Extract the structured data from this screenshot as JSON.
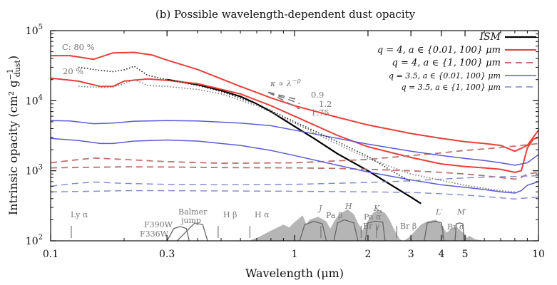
{
  "chart_data": {
    "type": "line",
    "title": "(b) Possible wavelength-dependent dust opacity",
    "xlabel": "Wavelength (μm)",
    "ylabel": "Intrinsic opacity (cm² g",
    "ylabel_sup": "−1",
    "ylabel_sub": "dust",
    "ylabel_close": ")",
    "x_scale": "log",
    "y_scale": "log",
    "xlim": [
      0.1,
      10
    ],
    "ylim": [
      100,
      100000
    ],
    "x_ticks": [
      {
        "value": 0.1,
        "label": "0.1"
      },
      {
        "value": 0.3,
        "label": "0.3"
      },
      {
        "value": 1,
        "label": "1"
      },
      {
        "value": 2,
        "label": "2"
      },
      {
        "value": 3,
        "label": "3"
      },
      {
        "value": 4,
        "label": "4"
      },
      {
        "value": 5,
        "label": "5"
      },
      {
        "value": 10,
        "label": "10"
      }
    ],
    "y_ticks": [
      {
        "value": 100,
        "label": "10",
        "exp": "2"
      },
      {
        "value": 1000,
        "label": "10",
        "exp": "3"
      },
      {
        "value": 10000,
        "label": "10",
        "exp": "4"
      },
      {
        "value": 100000,
        "label": "10",
        "exp": "5"
      }
    ],
    "legend_position": "top-right",
    "series": [
      {
        "name": "ISM",
        "color": "#000000",
        "style": "solid",
        "width": 2.2,
        "x": [
          0.3,
          0.4,
          0.5,
          0.6,
          0.7,
          0.8,
          1.0,
          1.2,
          1.5,
          2.0,
          2.5,
          3.0,
          3.3
        ],
        "y": [
          20000,
          17000,
          14000,
          11500,
          9000,
          7000,
          4300,
          2900,
          1750,
          1000,
          620,
          420,
          340
        ]
      },
      {
        "name": "q = 4, a ∈ {0.01, 100} μm",
        "legend_italic_end": false,
        "color": "#e8403b",
        "style": "solid",
        "width": 2.0,
        "x": [
          0.1,
          0.12,
          0.15,
          0.18,
          0.22,
          0.26,
          0.3,
          0.4,
          0.6,
          0.8,
          1.0,
          1.5,
          2.0,
          3.0,
          4.0,
          5.0,
          6.0,
          7.0,
          8.0,
          9.0,
          10.0
        ],
        "y": [
          44000,
          44000,
          39000,
          48000,
          49000,
          45000,
          38000,
          28000,
          16000,
          11000,
          8500,
          5800,
          4500,
          3400,
          2900,
          2600,
          2450,
          2300,
          1900,
          2300,
          3800
        ]
      },
      {
        "name": "q = 4, a ∈ {0.01, 100} μm (20%)",
        "color": "#e8403b",
        "style": "solid",
        "width": 2.0,
        "x": [
          0.1,
          0.13,
          0.16,
          0.18,
          0.2,
          0.25,
          0.3,
          0.4,
          0.6,
          0.8,
          1.0,
          1.5,
          2.0,
          3.0,
          4.0,
          5.0,
          6.0,
          7.0,
          8.0,
          8.5,
          9.0,
          9.5,
          10.0
        ],
        "y": [
          21000,
          19000,
          16000,
          16000,
          19000,
          20500,
          19500,
          17500,
          12500,
          8500,
          6000,
          3200,
          2200,
          1550,
          1250,
          1150,
          1100,
          1050,
          950,
          1000,
          2100,
          2800,
          3000
        ]
      },
      {
        "name": "q = 4, a ∈ {1, 100} μm",
        "color": "#c0706d",
        "style": "dashed",
        "width": 1.8,
        "x": [
          0.1,
          0.12,
          0.15,
          0.2,
          0.3,
          0.5,
          1.0,
          2.0,
          3.0,
          4.0,
          5.0,
          6.0,
          7.0,
          8.0,
          9.0,
          10.0
        ],
        "y": [
          1300,
          1400,
          1520,
          1450,
          1350,
          1280,
          1300,
          1450,
          1650,
          1800,
          1950,
          2050,
          2150,
          2250,
          2350,
          2450
        ]
      },
      {
        "name": "q = 4, a ∈ {1, 100} μm (20%)",
        "color": "#c0706d",
        "style": "dashed",
        "width": 1.8,
        "x": [
          0.1,
          0.15,
          0.2,
          0.3,
          0.5,
          1.0,
          1.5,
          2.0,
          2.5,
          3.0,
          4.0,
          5.0,
          6.0,
          7.0,
          8.0,
          8.5,
          9.0,
          10.0
        ],
        "y": [
          1100,
          1120,
          1140,
          1130,
          1110,
          1100,
          1080,
          1050,
          1020,
          1000,
          950,
          900,
          850,
          800,
          760,
          800,
          900,
          950
        ]
      },
      {
        "name": "q = 3.5, a ∈ {0.01, 100} μm",
        "color": "#5a5ad6",
        "style": "solid",
        "width": 1.5,
        "x": [
          0.1,
          0.12,
          0.15,
          0.18,
          0.22,
          0.3,
          0.4,
          0.6,
          0.8,
          1.0,
          1.5,
          2.0,
          3.0,
          4.0,
          5.0,
          6.0,
          7.0,
          8.0,
          9.0,
          10.0
        ],
        "y": [
          5200,
          5150,
          4700,
          4800,
          5100,
          5200,
          5150,
          4800,
          4400,
          3800,
          2900,
          2400,
          1900,
          1650,
          1500,
          1400,
          1300,
          1200,
          1300,
          1700
        ]
      },
      {
        "name": "q = 3.5, a ∈ {0.01, 100} μm (20%)",
        "color": "#5a5ad6",
        "style": "solid",
        "width": 1.5,
        "x": [
          0.1,
          0.13,
          0.16,
          0.18,
          0.22,
          0.3,
          0.4,
          0.6,
          0.8,
          1.0,
          1.5,
          2.0,
          3.0,
          4.0,
          5.0,
          6.0,
          7.0,
          8.0,
          8.5,
          9.0,
          10.0
        ],
        "y": [
          2900,
          2700,
          2450,
          2450,
          2650,
          2750,
          2650,
          2300,
          1950,
          1650,
          1200,
          960,
          740,
          630,
          580,
          540,
          500,
          480,
          520,
          620,
          700
        ]
      },
      {
        "name": "q = 3.5, a ∈ {1, 100} μm",
        "color": "#7f86c8",
        "style": "dashed",
        "width": 1.4,
        "x": [
          0.1,
          0.12,
          0.15,
          0.2,
          0.3,
          0.5,
          1.0,
          2.0,
          3.0,
          4.0,
          5.0,
          6.0,
          7.0,
          8.0,
          9.0,
          10.0
        ],
        "y": [
          600,
          650,
          690,
          660,
          640,
          630,
          640,
          680,
          720,
          760,
          790,
          810,
          820,
          830,
          840,
          850
        ]
      },
      {
        "name": "q = 3.5, a ∈ {1, 100} μm (20%)",
        "color": "#7f86c8",
        "style": "dashed",
        "width": 1.4,
        "x": [
          0.1,
          0.15,
          0.2,
          0.3,
          0.5,
          1.0,
          2.0,
          3.0,
          4.0,
          5.0,
          6.0,
          7.0,
          8.0,
          9.0,
          10.0
        ],
        "y": [
          500,
          510,
          520,
          520,
          515,
          510,
          500,
          490,
          470,
          450,
          430,
          410,
          395,
          410,
          420
        ]
      },
      {
        "name": "power law κ ∝ λ^-0.9",
        "color": "#777777",
        "style": "dashed",
        "width": 1.6,
        "x": [
          0.78,
          1.05
        ],
        "y": [
          13200,
          10200
        ]
      },
      {
        "name": "power law κ ∝ λ^-1.2",
        "color": "#777777",
        "style": "dashed",
        "width": 1.6,
        "x": [
          0.78,
          1.05
        ],
        "y": [
          13200,
          9100
        ]
      },
      {
        "name": "power law κ ∝ λ^-1.75",
        "color": "#777777",
        "style": "dashed",
        "width": 1.6,
        "x": [
          0.78,
          1.05
        ],
        "y": [
          13200,
          7600
        ]
      },
      {
        "name": "C: 80% dotted",
        "color": "#222222",
        "style": "dotted",
        "width": 1.6,
        "x": [
          0.13,
          0.16,
          0.18,
          0.2,
          0.22,
          0.25,
          0.3,
          0.4,
          0.5,
          0.7,
          1.0,
          1.5,
          2.0,
          2.5,
          3.0
        ],
        "y": [
          30000,
          27000,
          26000,
          27500,
          31000,
          23000,
          20000,
          16500,
          13500,
          9000,
          5000,
          2600,
          1600,
          1000,
          700
        ]
      },
      {
        "name": "20% dotted",
        "color": "#777777",
        "style": "dotted",
        "width": 1.6,
        "x": [
          0.13,
          0.16,
          0.18,
          0.2,
          0.22,
          0.25,
          0.3,
          0.4,
          0.5,
          0.7,
          1.0,
          1.5,
          2.0,
          3.0,
          5.0,
          7.0,
          8.0
        ],
        "y": [
          16000,
          15500,
          15700,
          17500,
          20000,
          16500,
          16000,
          14500,
          12500,
          8500,
          4800,
          2400,
          1500,
          900,
          620,
          520,
          500
        ]
      }
    ],
    "legend_entries": [
      {
        "label": "ISM",
        "color": "#000000",
        "style": "solid",
        "size": 14
      },
      {
        "label": "q = 4, a ∈ {0.01, 100} μm",
        "color": "#e8403b",
        "style": "solid",
        "size": 13
      },
      {
        "label": "q = 4, a ∈ {1, 100} μm",
        "color": "#c0706d",
        "style": "dashed",
        "size": 13
      },
      {
        "label": "q = 3.5, a ∈ {0.01, 100} μm",
        "color": "#5a5ad6",
        "style": "solid",
        "size": 11
      },
      {
        "label": "q = 3.5, a ∈ {1, 100} μm",
        "color": "#7f86c8",
        "style": "dashed",
        "size": 11
      }
    ],
    "filters": [
      {
        "name": "F390W",
        "x": [
          0.33,
          0.37,
          0.39,
          0.42,
          0.44
        ],
        "y": [
          100,
          150,
          180,
          170,
          100
        ]
      },
      {
        "name": "F336W",
        "x": [
          0.3,
          0.32,
          0.34,
          0.36,
          0.37
        ],
        "y": [
          100,
          150,
          160,
          150,
          100
        ]
      },
      {
        "name": "J",
        "x": [
          1.05,
          1.1,
          1.2,
          1.3,
          1.35
        ],
        "y": [
          100,
          170,
          190,
          175,
          100
        ]
      },
      {
        "name": "H",
        "x": [
          1.45,
          1.5,
          1.6,
          1.75,
          1.82
        ],
        "y": [
          100,
          180,
          200,
          180,
          100
        ]
      },
      {
        "name": "Ks",
        "x": [
          1.95,
          2.0,
          2.15,
          2.3,
          2.35
        ],
        "y": [
          100,
          180,
          190,
          185,
          100
        ]
      },
      {
        "name": "L'",
        "x": [
          3.4,
          3.5,
          3.8,
          4.0,
          4.1
        ],
        "y": [
          100,
          180,
          190,
          180,
          100
        ]
      },
      {
        "name": "M'",
        "x": [
          4.55,
          4.6,
          4.75,
          4.9,
          4.95
        ],
        "y": [
          100,
          175,
          180,
          175,
          100
        ]
      }
    ],
    "atmospheric_transmission": {
      "color": "#b5b5b5",
      "x": [
        0.65,
        0.72,
        0.8,
        0.9,
        0.95,
        1.0,
        1.08,
        1.12,
        1.15,
        1.25,
        1.35,
        1.4,
        1.48,
        1.55,
        1.65,
        1.75,
        1.82,
        1.9,
        2.0,
        2.1,
        2.2,
        2.35,
        2.45,
        2.55,
        2.7,
        2.8,
        2.9,
        3.0,
        3.3,
        3.5,
        3.8,
        4.0,
        4.2,
        4.4,
        4.6,
        4.8,
        5.0,
        5.1,
        5.2,
        5.5,
        6.0
      ],
      "y": [
        100,
        115,
        140,
        170,
        155,
        185,
        230,
        170,
        200,
        220,
        190,
        150,
        210,
        250,
        280,
        240,
        180,
        140,
        195,
        250,
        280,
        250,
        200,
        150,
        105,
        100,
        108,
        120,
        170,
        190,
        200,
        170,
        130,
        150,
        160,
        140,
        125,
        110,
        118,
        105,
        100
      ]
    },
    "line_markers": [
      {
        "label": "Ly α",
        "x": 0.1216
      },
      {
        "label": "H β",
        "x": 0.4861
      },
      {
        "label": "H α",
        "x": 0.6563
      },
      {
        "label": "Pa β",
        "x": 1.282
      },
      {
        "label": "Pa α",
        "x": 1.875
      },
      {
        "label": "Br γ",
        "x": 2.166
      },
      {
        "label": "Br β",
        "x": 2.626
      },
      {
        "label": "Br α",
        "x": 4.051
      }
    ],
    "annotations": {
      "c80": "C: 80 %",
      "p20": "20 %",
      "kappa_law": "κ ∝ λ",
      "kappa_exp": "−ρ",
      "slope_1": "0.9",
      "slope_2": "1.2",
      "slope_3": "1.75",
      "balmer_1": "Balmer",
      "balmer_2": "jump",
      "f390": "F390W",
      "f336": "F336W",
      "j": "J",
      "h": "H",
      "ks": "K",
      "ks_sub": "s",
      "lp": "L′",
      "mp": "M′",
      "lya": "Ly α",
      "hb": "H β",
      "ha": "H α",
      "pab": "Pa β",
      "paa": "Pa α",
      "brg": "Br γ",
      "brb": "Br β",
      "bra": "Br α"
    }
  }
}
